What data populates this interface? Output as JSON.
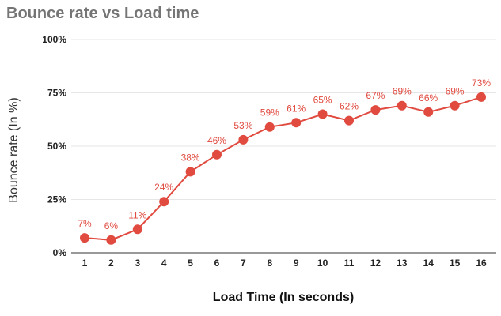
{
  "chart_data": {
    "type": "line",
    "title": "Bounce rate vs Load time",
    "xlabel": "Load Time (In seconds)",
    "ylabel": "Bounce rate (In %)",
    "x": [
      "1",
      "2",
      "3",
      "4",
      "5",
      "6",
      "7",
      "8",
      "9",
      "10",
      "11",
      "12",
      "13",
      "14",
      "15",
      "16"
    ],
    "values": [
      7,
      6,
      11,
      24,
      38,
      46,
      53,
      59,
      61,
      65,
      62,
      67,
      69,
      66,
      69,
      73
    ],
    "data_labels": [
      "7%",
      "6%",
      "11%",
      "24%",
      "38%",
      "46%",
      "53%",
      "59%",
      "61%",
      "65%",
      "62%",
      "67%",
      "69%",
      "66%",
      "69%",
      "73%"
    ],
    "ylim": [
      0,
      100
    ],
    "y_ticks": [
      "0%",
      "25%",
      "50%",
      "75%",
      "100%"
    ],
    "y_tick_values": [
      0,
      25,
      50,
      75,
      100
    ],
    "grid": true,
    "legend": "none",
    "color": "#e04a3f"
  }
}
